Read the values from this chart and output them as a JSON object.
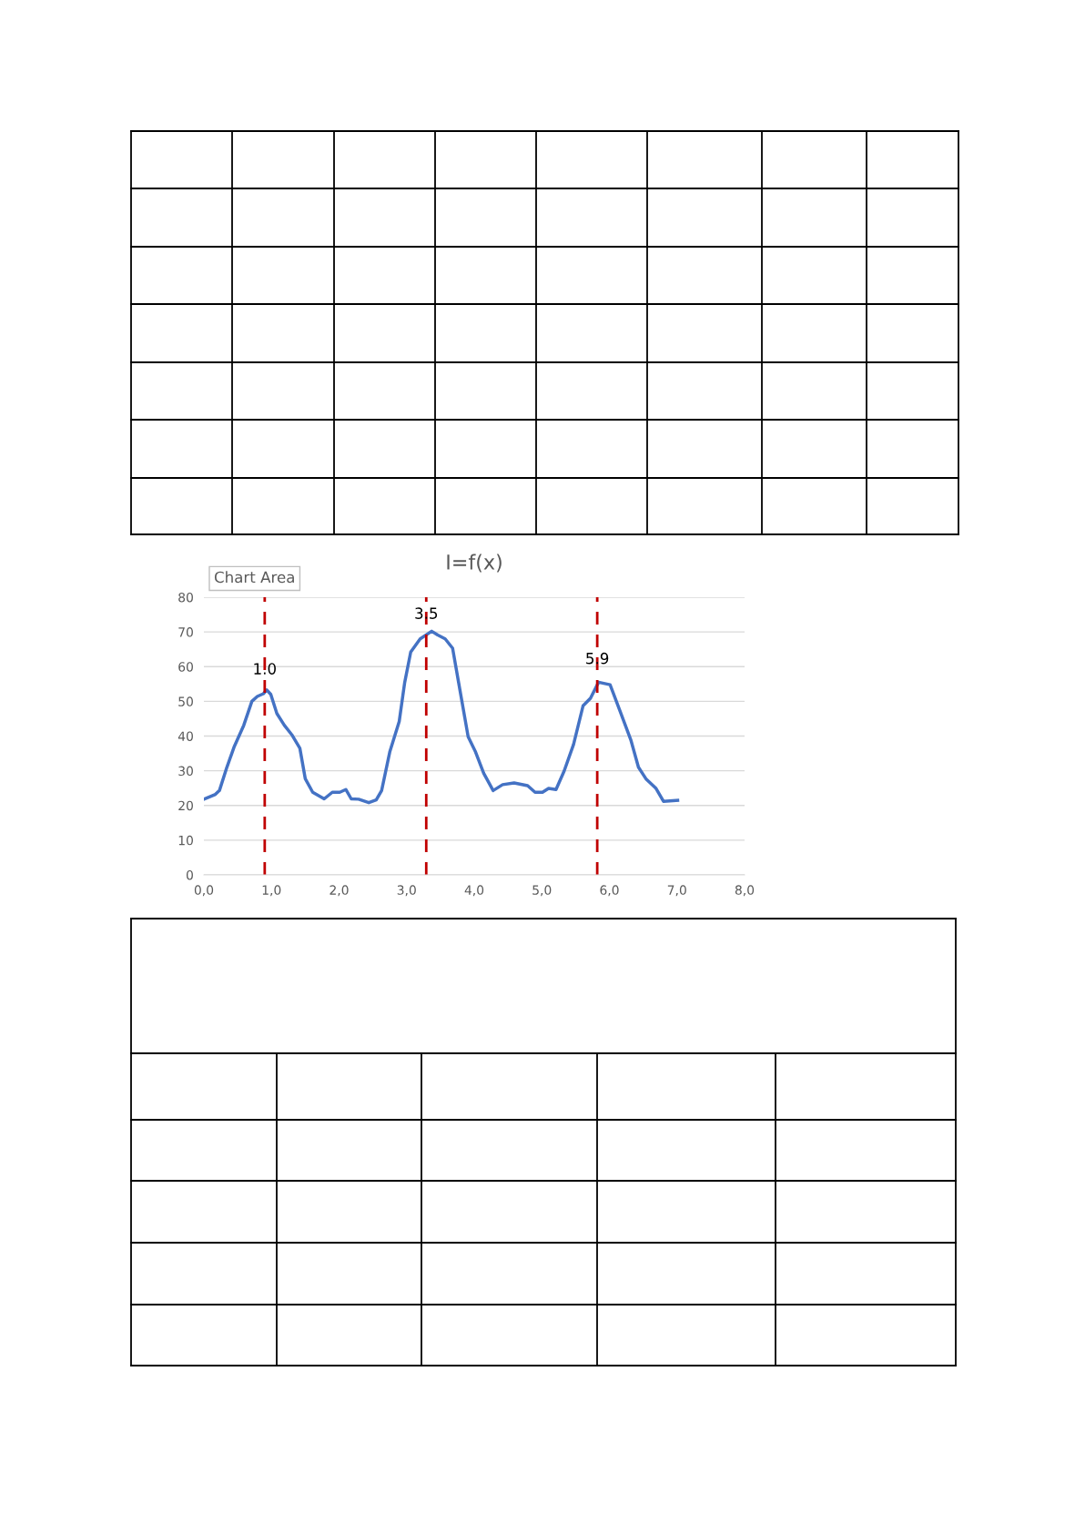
{
  "chart_data": {
    "type": "line",
    "title": "I=f(x)",
    "x": [
      0.0,
      0.17,
      0.23,
      0.34,
      0.45,
      0.59,
      0.71,
      0.79,
      0.88,
      0.93,
      0.99,
      1.08,
      1.19,
      1.3,
      1.42,
      1.5,
      1.61,
      1.78,
      1.9,
      2.01,
      2.1,
      2.18,
      2.29,
      2.44,
      2.55,
      2.63,
      2.75,
      2.89,
      2.97,
      3.06,
      3.2,
      3.37,
      3.46,
      3.57,
      3.68,
      3.77,
      3.91,
      4.02,
      4.14,
      4.28,
      4.42,
      4.59,
      4.79,
      4.9,
      5.01,
      5.1,
      5.21,
      5.33,
      5.47,
      5.61,
      5.72,
      5.84,
      6.01,
      6.15,
      6.32,
      6.43,
      6.54,
      6.69,
      6.8,
      7.01
    ],
    "series": [
      {
        "color": "#4472c4",
        "values": [
          21.8,
          23.2,
          24.3,
          31,
          37,
          43.1,
          50,
          51.4,
          52.2,
          53.3,
          52,
          46.5,
          43.1,
          40.4,
          36.5,
          27.7,
          23.8,
          21.9,
          23.8,
          23.8,
          24.6,
          21.9,
          21.8,
          20.8,
          21.6,
          24.3,
          35.4,
          44.2,
          55.3,
          64.2,
          68,
          70.2,
          69.1,
          68,
          65.3,
          55.3,
          39.8,
          35.4,
          29.3,
          24.3,
          26,
          26.5,
          25.7,
          23.8,
          23.8,
          24.9,
          24.6,
          29.9,
          37.6,
          48.7,
          50.9,
          55.5,
          54.8,
          47.6,
          38.7,
          31,
          27.7,
          24.9,
          21.2,
          21.5
        ]
      }
    ],
    "xlim": [
      0,
      8
    ],
    "xticks": [
      {
        "value": 0,
        "label": "0,0"
      },
      {
        "value": 1,
        "label": "1,0"
      },
      {
        "value": 2,
        "label": "2,0"
      },
      {
        "value": 3,
        "label": "3,0"
      },
      {
        "value": 4,
        "label": "4,0"
      },
      {
        "value": 5,
        "label": "5,0"
      },
      {
        "value": 6,
        "label": "6,0"
      },
      {
        "value": 7,
        "label": "7,0"
      },
      {
        "value": 8,
        "label": "8,0"
      }
    ],
    "ylim": [
      0,
      80
    ],
    "yticks": [
      0,
      10,
      20,
      30,
      40,
      50,
      60,
      70,
      80
    ],
    "grid": "y",
    "line_style": "solid",
    "ref_lines": [
      {
        "axis": "x",
        "value": 0.9,
        "color": "#c00000",
        "line_style": "dashed"
      },
      {
        "axis": "x",
        "value": 3.29,
        "color": "#c00000",
        "line_style": "dashed"
      },
      {
        "axis": "x",
        "value": 5.82,
        "color": "#c00000",
        "line_style": "dashed"
      }
    ],
    "annotations": [
      "Chart Area",
      {
        "text": "1.0",
        "x": 0.9,
        "y": 59
      },
      {
        "text": "3.5",
        "x": 3.29,
        "y": 75
      },
      {
        "text": "5.9",
        "x": 5.82,
        "y": 62
      }
    ]
  }
}
